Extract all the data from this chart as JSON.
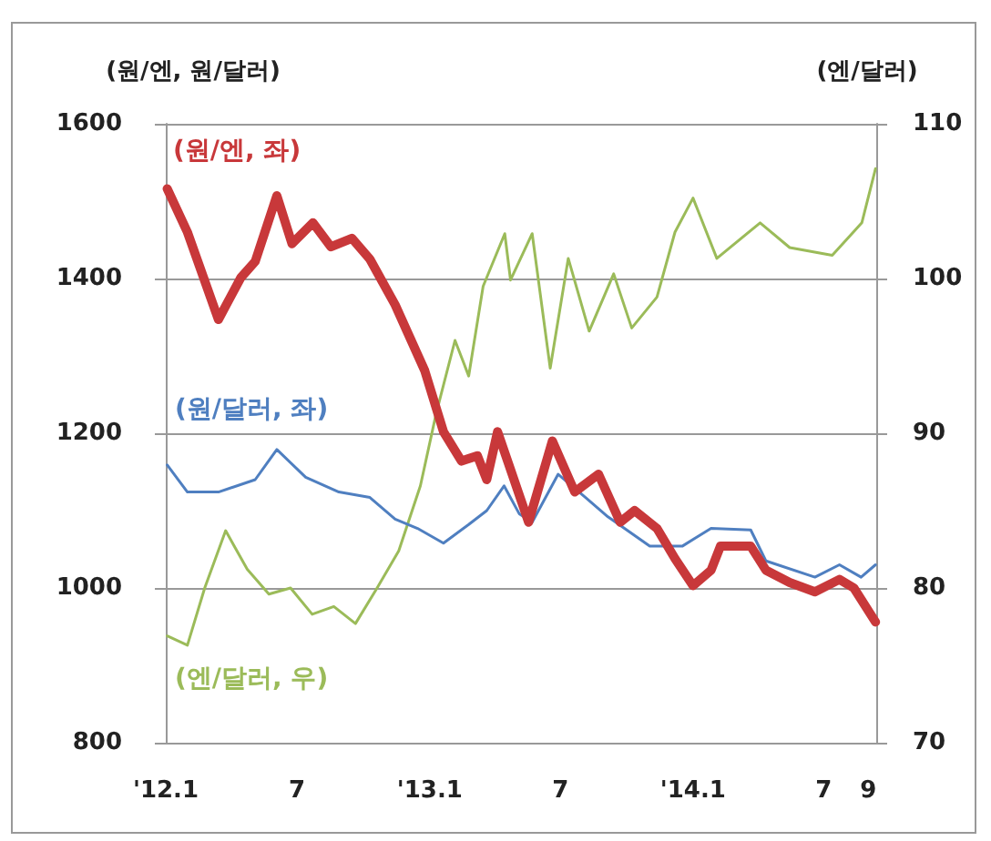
{
  "chart_data": {
    "type": "line",
    "ylabel": "(원/엔, 원/달러)",
    "y2label": "(엔/달러)",
    "xlim": [
      "2012-01-01",
      "2014-09-12"
    ],
    "xticks": [
      {
        "value": "2012-01-01",
        "label": "'12.1"
      },
      {
        "value": "2012-07-01",
        "label": "7"
      },
      {
        "value": "2013-01-01",
        "label": "'13.1"
      },
      {
        "value": "2013-07-01",
        "label": "7"
      },
      {
        "value": "2014-01-01",
        "label": "'14.1"
      },
      {
        "value": "2014-07-01",
        "label": "7"
      },
      {
        "value": "2014-09-01",
        "label": "9"
      }
    ],
    "ylim": [
      800,
      1600
    ],
    "yticks": [
      800,
      1000,
      1200,
      1400,
      1600
    ],
    "y2lim": [
      70,
      110
    ],
    "y2ticks": [
      70,
      80,
      90,
      100,
      110
    ],
    "grid": "y",
    "legend": false,
    "marker": "none",
    "line_style": "solid",
    "series": [
      {
        "name": "(원/엔, 좌)",
        "color": "#c8383a",
        "x": [
          "2012-01-03",
          "2012-01-31",
          "2012-03-14",
          "2012-04-14",
          "2012-05-04",
          "2012-06-03",
          "2012-06-24",
          "2012-07-23",
          "2012-08-17",
          "2012-09-15",
          "2012-10-10",
          "2012-11-14",
          "2012-12-25",
          "2013-01-20",
          "2013-02-14",
          "2013-03-08",
          "2013-03-21",
          "2013-04-05",
          "2013-05-18",
          "2013-06-20",
          "2013-07-21",
          "2013-08-23",
          "2013-09-22",
          "2013-10-12",
          "2013-11-12",
          "2013-12-07",
          "2014-01-01",
          "2014-01-26",
          "2014-02-08",
          "2014-03-22",
          "2014-04-12",
          "2014-05-15",
          "2014-06-19",
          "2014-07-23",
          "2014-08-12",
          "2014-09-11"
        ],
        "values": [
          1516,
          1460,
          1347,
          1401,
          1422,
          1507,
          1445,
          1472,
          1441,
          1452,
          1425,
          1366,
          1281,
          1202,
          1164,
          1171,
          1140,
          1202,
          1085,
          1190,
          1124,
          1147,
          1085,
          1100,
          1077,
          1038,
          1003,
          1023,
          1054,
          1054,
          1023,
          1007,
          995,
          1011,
          1000,
          956
        ]
      },
      {
        "name": "(원/달러, 좌)",
        "color": "#4f7fc0",
        "x": [
          "2012-01-03",
          "2012-01-31",
          "2012-03-14",
          "2012-05-04",
          "2012-06-03",
          "2012-07-13",
          "2012-08-28",
          "2012-10-10",
          "2012-11-14",
          "2012-12-15",
          "2013-01-20",
          "2013-02-24",
          "2013-03-21",
          "2013-04-14",
          "2013-05-05",
          "2013-05-23",
          "2013-06-28",
          "2013-08-05",
          "2013-09-05",
          "2013-11-02",
          "2013-12-17",
          "2014-01-26",
          "2014-03-22",
          "2014-04-12",
          "2014-06-19",
          "2014-07-23",
          "2014-08-22",
          "2014-09-11"
        ],
        "values": [
          1159,
          1124,
          1124,
          1140,
          1179,
          1143,
          1124,
          1117,
          1089,
          1077,
          1058,
          1082,
          1100,
          1132,
          1096,
          1085,
          1147,
          1117,
          1092,
          1054,
          1054,
          1077,
          1075,
          1035,
          1014,
          1030,
          1014,
          1030
        ]
      },
      {
        "name": "(엔/달러, 우)",
        "color": "#9bbb59",
        "axis": "y2",
        "x": [
          "2012-01-03",
          "2012-01-31",
          "2012-02-24",
          "2012-03-24",
          "2012-04-23",
          "2012-05-23",
          "2012-06-22",
          "2012-07-22",
          "2012-08-21",
          "2012-09-20",
          "2012-10-20",
          "2012-11-19",
          "2012-12-19",
          "2013-01-10",
          "2013-02-05",
          "2013-02-24",
          "2013-03-16",
          "2013-04-15",
          "2013-04-23",
          "2013-05-23",
          "2013-06-17",
          "2013-07-12",
          "2013-08-10",
          "2013-09-13",
          "2013-10-08",
          "2013-11-12",
          "2013-12-07",
          "2014-01-01",
          "2014-02-03",
          "2014-04-04",
          "2014-05-15",
          "2014-07-13",
          "2014-08-23",
          "2014-09-11"
        ],
        "values": [
          76.9,
          76.3,
          80.0,
          83.7,
          81.2,
          79.6,
          80.0,
          78.3,
          78.8,
          77.7,
          80.0,
          82.4,
          86.6,
          91.3,
          96.0,
          93.7,
          99.5,
          102.9,
          99.9,
          102.9,
          94.2,
          101.3,
          96.6,
          100.3,
          96.8,
          98.8,
          103.0,
          105.2,
          101.3,
          103.6,
          102.0,
          101.5,
          103.6,
          107.1
        ]
      }
    ]
  }
}
